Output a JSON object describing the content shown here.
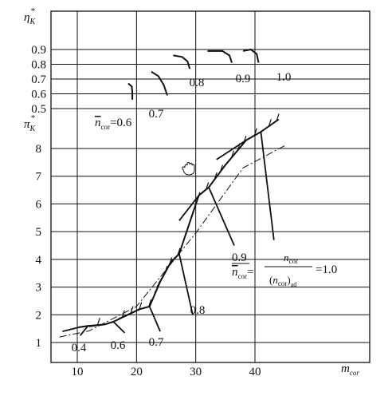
{
  "chart_data": {
    "type": "line",
    "x_axis": {
      "label": "m_cor",
      "label_main": "m",
      "label_sub": "cor",
      "range": [
        7,
        47
      ],
      "ticks": [
        10,
        20,
        30,
        40
      ],
      "tick_labels": [
        "10",
        "20",
        "30",
        "40"
      ]
    },
    "efficiency_axis": {
      "label_main": "η",
      "label_sub": "K",
      "label_sup": "*",
      "range": [
        0.5,
        0.95
      ],
      "ticks": [
        0.5,
        0.6,
        0.7,
        0.8,
        0.9
      ],
      "tick_labels": [
        "0.5",
        "0.6",
        "0.7",
        "0.8",
        "0.9"
      ]
    },
    "pressure_axis": {
      "label_main": "π",
      "label_sub": "K",
      "label_sup": "*",
      "range": [
        0.8,
        9.3
      ],
      "ticks": [
        1,
        2,
        3,
        4,
        5,
        6,
        7,
        8
      ],
      "tick_labels": [
        "1",
        "2",
        "3",
        "4",
        "5",
        "6",
        "7",
        "8"
      ]
    },
    "grid": true,
    "speed_lines": [
      {
        "label": "0.4",
        "points": [
          [
            7.5,
            1.4
          ],
          [
            10.3,
            1.55
          ],
          [
            11.8,
            1.6
          ],
          [
            10.5,
            1.25
          ]
        ]
      },
      {
        "label": "0.6",
        "points": [
          [
            12,
            1.58
          ],
          [
            14.6,
            1.65
          ],
          [
            16.1,
            1.75
          ],
          [
            18,
            1.35
          ]
        ]
      },
      {
        "label": "0.7",
        "points": [
          [
            17,
            1.85
          ],
          [
            20.5,
            2.2
          ],
          [
            22.2,
            2.3
          ],
          [
            24,
            1.4
          ]
        ]
      },
      {
        "label": "0.8",
        "points": [
          [
            23.5,
            3
          ],
          [
            25.8,
            3.9
          ],
          [
            27.2,
            4.2
          ],
          [
            29.5,
            2.0
          ]
        ]
      },
      {
        "label": "0.9",
        "points": [
          [
            27.2,
            5.4
          ],
          [
            30.5,
            6.3
          ],
          [
            32.2,
            6.6
          ],
          [
            36.5,
            4.5
          ]
        ]
      },
      {
        "label": "1.0",
        "points": [
          [
            33.5,
            7.6
          ],
          [
            38.5,
            8.3
          ],
          [
            41,
            8.6
          ],
          [
            43.2,
            4.7
          ]
        ]
      }
    ],
    "surge_line": [
      [
        10.3,
        1.55
      ],
      [
        11.8,
        1.6
      ],
      [
        14.6,
        1.65
      ],
      [
        16.1,
        1.75
      ],
      [
        20.5,
        2.2
      ],
      [
        22.2,
        2.3
      ],
      [
        24,
        3.2
      ],
      [
        25.8,
        3.9
      ],
      [
        27.2,
        4.2
      ],
      [
        30.5,
        6.3
      ],
      [
        32.2,
        6.6
      ],
      [
        35,
        7.4
      ],
      [
        38.5,
        8.3
      ],
      [
        41,
        8.6
      ],
      [
        44,
        9.05
      ]
    ],
    "operating_line": [
      [
        7,
        1.2
      ],
      [
        12,
        1.42
      ],
      [
        20,
        2.3
      ],
      [
        30,
        4.95
      ],
      [
        38,
        7.3
      ],
      [
        45,
        8.1
      ]
    ],
    "efficiency_curves": [
      {
        "label": "0.6",
        "points": [
          [
            18.6,
            0.67
          ],
          [
            19.2,
            0.65
          ],
          [
            19.3,
            0.61
          ],
          [
            19.3,
            0.56
          ]
        ]
      },
      {
        "label": "0.7",
        "points": [
          [
            22.5,
            0.75
          ],
          [
            23.7,
            0.72
          ],
          [
            24.6,
            0.66
          ],
          [
            25.2,
            0.59
          ]
        ]
      },
      {
        "label": "0.8",
        "points": [
          [
            26.2,
            0.86
          ],
          [
            27.7,
            0.85
          ],
          [
            28.6,
            0.82
          ],
          [
            29,
            0.77
          ]
        ]
      },
      {
        "label": "0.9",
        "points": [
          [
            32,
            0.89
          ],
          [
            34.5,
            0.89
          ],
          [
            35.7,
            0.86
          ],
          [
            36.1,
            0.81
          ]
        ]
      },
      {
        "label": "1.0",
        "points": [
          [
            38,
            0.89
          ],
          [
            39.3,
            0.9
          ],
          [
            40.3,
            0.87
          ],
          [
            40.6,
            0.81
          ]
        ]
      }
    ]
  },
  "labels": {
    "speed_prefix_upper": "0.9",
    "speed_prefix_var": "n",
    "speed_prefix_sub": "cor",
    "speed_frac_num_var": "n",
    "speed_frac_num_sub": "cor",
    "speed_frac_den_var": "n",
    "speed_frac_den_sub": "cor",
    "speed_frac_den_subsub": "ad",
    "speed_suffix": "=1.0",
    "eff_speed_var": "n",
    "eff_speed_sub": "cor",
    "eff_speed_value": "=0.6"
  }
}
